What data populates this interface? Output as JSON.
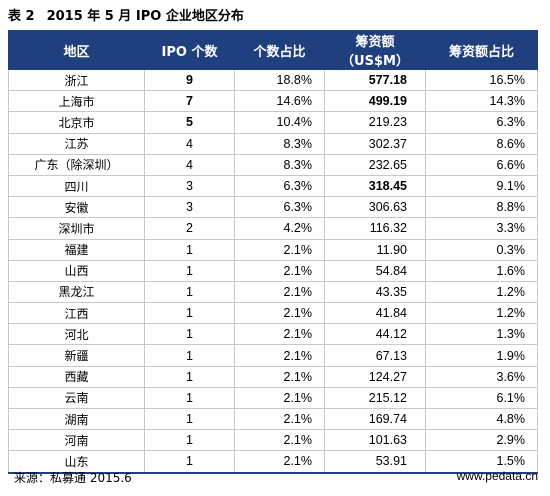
{
  "caption": {
    "number": "表 2",
    "title": "2015 年 5 月 IPO 企业地区分布"
  },
  "headers": [
    "地区",
    "IPO 个数",
    "个数占比",
    "筹资额（US$M）",
    "筹资额占比"
  ],
  "rows": [
    {
      "region": "浙江",
      "count": "9",
      "count_pct": "18.8%",
      "amount": "577.18",
      "amount_pct": "16.5%",
      "bold_count": true,
      "bold_amount": true
    },
    {
      "region": "上海市",
      "count": "7",
      "count_pct": "14.6%",
      "amount": "499.19",
      "amount_pct": "14.3%",
      "bold_count": true,
      "bold_amount": true
    },
    {
      "region": "北京市",
      "count": "5",
      "count_pct": "10.4%",
      "amount": "219.23",
      "amount_pct": "6.3%",
      "bold_count": true,
      "bold_amount": false
    },
    {
      "region": "江苏",
      "count": "4",
      "count_pct": "8.3%",
      "amount": "302.37",
      "amount_pct": "8.6%",
      "bold_count": false,
      "bold_amount": false
    },
    {
      "region": "广东（除深圳）",
      "count": "4",
      "count_pct": "8.3%",
      "amount": "232.65",
      "amount_pct": "6.6%",
      "bold_count": false,
      "bold_amount": false
    },
    {
      "region": "四川",
      "count": "3",
      "count_pct": "6.3%",
      "amount": "318.45",
      "amount_pct": "9.1%",
      "bold_count": false,
      "bold_amount": true
    },
    {
      "region": "安徽",
      "count": "3",
      "count_pct": "6.3%",
      "amount": "306.63",
      "amount_pct": "8.8%",
      "bold_count": false,
      "bold_amount": false
    },
    {
      "region": "深圳市",
      "count": "2",
      "count_pct": "4.2%",
      "amount": "116.32",
      "amount_pct": "3.3%",
      "bold_count": false,
      "bold_amount": false
    },
    {
      "region": "福建",
      "count": "1",
      "count_pct": "2.1%",
      "amount": "11.90",
      "amount_pct": "0.3%",
      "bold_count": false,
      "bold_amount": false
    },
    {
      "region": "山西",
      "count": "1",
      "count_pct": "2.1%",
      "amount": "54.84",
      "amount_pct": "1.6%",
      "bold_count": false,
      "bold_amount": false
    },
    {
      "region": "黑龙江",
      "count": "1",
      "count_pct": "2.1%",
      "amount": "43.35",
      "amount_pct": "1.2%",
      "bold_count": false,
      "bold_amount": false
    },
    {
      "region": "江西",
      "count": "1",
      "count_pct": "2.1%",
      "amount": "41.84",
      "amount_pct": "1.2%",
      "bold_count": false,
      "bold_amount": false
    },
    {
      "region": "河北",
      "count": "1",
      "count_pct": "2.1%",
      "amount": "44.12",
      "amount_pct": "1.3%",
      "bold_count": false,
      "bold_amount": false
    },
    {
      "region": "新疆",
      "count": "1",
      "count_pct": "2.1%",
      "amount": "67.13",
      "amount_pct": "1.9%",
      "bold_count": false,
      "bold_amount": false
    },
    {
      "region": "西藏",
      "count": "1",
      "count_pct": "2.1%",
      "amount": "124.27",
      "amount_pct": "3.6%",
      "bold_count": false,
      "bold_amount": false
    },
    {
      "region": "云南",
      "count": "1",
      "count_pct": "2.1%",
      "amount": "215.12",
      "amount_pct": "6.1%",
      "bold_count": false,
      "bold_amount": false
    },
    {
      "region": "湖南",
      "count": "1",
      "count_pct": "2.1%",
      "amount": "169.74",
      "amount_pct": "4.8%",
      "bold_count": false,
      "bold_amount": false
    },
    {
      "region": "河南",
      "count": "1",
      "count_pct": "2.1%",
      "amount": "101.63",
      "amount_pct": "2.9%",
      "bold_count": false,
      "bold_amount": false
    },
    {
      "region": "山东",
      "count": "1",
      "count_pct": "2.1%",
      "amount": "53.91",
      "amount_pct": "1.5%",
      "bold_count": false,
      "bold_amount": false
    }
  ],
  "footer": {
    "source": "来源：私募通  2015.6",
    "site": "www.pedata.cn"
  },
  "colors": {
    "header_bg": "#1f3f7f",
    "header_text": "#ffffff",
    "grid": "#c8c8c8"
  }
}
